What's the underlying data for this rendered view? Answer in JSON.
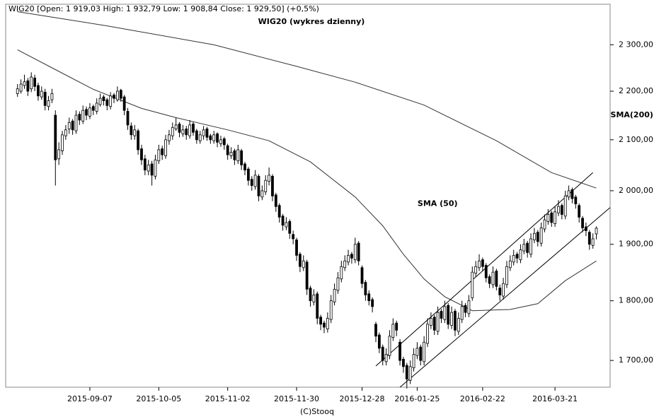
{
  "chart_data": {
    "type": "candlestick",
    "header": "WIG20 [Open: 1 919,03  High: 1 932,79  Low: 1 908,84  Close: 1 929,50] (+0,5%)",
    "title": "WIG20 (wykres dzienny)",
    "footer": "(C)Stooq",
    "log_scale": true,
    "grid": false,
    "color": "#000000",
    "up_color": "#ffffff",
    "down_color": "#000000",
    "xlim": [
      -2,
      172
    ],
    "xticks": [
      {
        "value": 21,
        "label": "2015-09-07"
      },
      {
        "value": 41,
        "label": "2015-10-05"
      },
      {
        "value": 61,
        "label": "2015-11-02"
      },
      {
        "value": 81,
        "label": "2015-11-30"
      },
      {
        "value": 100,
        "label": "2015-12-28"
      },
      {
        "value": 116,
        "label": "2016-01-25"
      },
      {
        "value": 135,
        "label": "2016-02-22"
      },
      {
        "value": 156,
        "label": "2016-03-21"
      }
    ],
    "ylim": [
      1657,
      2391
    ],
    "yticks": [
      {
        "value": 1700,
        "label": "1 700,00"
      },
      {
        "value": 1800,
        "label": "1 800,00"
      },
      {
        "value": 1900,
        "label": "1 900,00"
      },
      {
        "value": 2000,
        "label": "2 000,00"
      },
      {
        "value": 2100,
        "label": "2 100,00"
      },
      {
        "value": 2200,
        "label": "2 200,00"
      },
      {
        "value": 2300,
        "label": "2 300,00"
      }
    ],
    "candles": [
      [
        2195,
        2215,
        2188,
        2205
      ],
      [
        2200,
        2225,
        2195,
        2215
      ],
      [
        2212,
        2235,
        2205,
        2220
      ],
      [
        2222,
        2228,
        2190,
        2200
      ],
      [
        2205,
        2240,
        2198,
        2230
      ],
      [
        2228,
        2235,
        2200,
        2210
      ],
      [
        2212,
        2218,
        2180,
        2190
      ],
      [
        2188,
        2210,
        2182,
        2200
      ],
      [
        2198,
        2205,
        2160,
        2170
      ],
      [
        2168,
        2190,
        2160,
        2180
      ],
      [
        2182,
        2205,
        2175,
        2195
      ],
      [
        2150,
        2160,
        2010,
        2060
      ],
      [
        2062,
        2095,
        2050,
        2080
      ],
      [
        2078,
        2118,
        2070,
        2110
      ],
      [
        2108,
        2130,
        2100,
        2120
      ],
      [
        2122,
        2145,
        2112,
        2135
      ],
      [
        2138,
        2142,
        2110,
        2120
      ],
      [
        2118,
        2160,
        2112,
        2150
      ],
      [
        2152,
        2158,
        2130,
        2140
      ],
      [
        2138,
        2170,
        2132,
        2160
      ],
      [
        2162,
        2168,
        2140,
        2150
      ],
      [
        2148,
        2175,
        2142,
        2165
      ],
      [
        2168,
        2172,
        2150,
        2160
      ],
      [
        2158,
        2185,
        2152,
        2175
      ],
      [
        2172,
        2195,
        2168,
        2185
      ],
      [
        2188,
        2192,
        2170,
        2180
      ],
      [
        2182,
        2186,
        2160,
        2170
      ],
      [
        2168,
        2198,
        2162,
        2190
      ],
      [
        2192,
        2196,
        2175,
        2185
      ],
      [
        2182,
        2210,
        2178,
        2200
      ],
      [
        2202,
        2205,
        2178,
        2185
      ],
      [
        2188,
        2192,
        2150,
        2160
      ],
      [
        2158,
        2165,
        2120,
        2130
      ],
      [
        2128,
        2135,
        2100,
        2110
      ],
      [
        2108,
        2130,
        2100,
        2120
      ],
      [
        2118,
        2122,
        2070,
        2080
      ],
      [
        2082,
        2090,
        2050,
        2060
      ],
      [
        2062,
        2070,
        2030,
        2040
      ],
      [
        2038,
        2060,
        2030,
        2050
      ],
      [
        2052,
        2058,
        2010,
        2030
      ],
      [
        2028,
        2070,
        2022,
        2060
      ],
      [
        2058,
        2090,
        2052,
        2080
      ],
      [
        2082,
        2088,
        2060,
        2070
      ],
      [
        2068,
        2110,
        2062,
        2100
      ],
      [
        2098,
        2120,
        2090,
        2110
      ],
      [
        2108,
        2135,
        2100,
        2125
      ],
      [
        2122,
        2145,
        2118,
        2130
      ],
      [
        2132,
        2136,
        2105,
        2115
      ],
      [
        2112,
        2130,
        2106,
        2120
      ],
      [
        2122,
        2128,
        2100,
        2110
      ],
      [
        2108,
        2140,
        2102,
        2130
      ],
      [
        2132,
        2136,
        2108,
        2115
      ],
      [
        2118,
        2122,
        2092,
        2100
      ],
      [
        2098,
        2118,
        2092,
        2110
      ],
      [
        2108,
        2128,
        2100,
        2120
      ],
      [
        2122,
        2126,
        2098,
        2105
      ],
      [
        2108,
        2112,
        2092,
        2100
      ],
      [
        2098,
        2118,
        2092,
        2110
      ],
      [
        2112,
        2115,
        2085,
        2095
      ],
      [
        2092,
        2108,
        2086,
        2100
      ],
      [
        2102,
        2106,
        2080,
        2090
      ],
      [
        2088,
        2092,
        2060,
        2070
      ],
      [
        2068,
        2085,
        2062,
        2075
      ],
      [
        2078,
        2082,
        2050,
        2060
      ],
      [
        2058,
        2090,
        2052,
        2080
      ],
      [
        2078,
        2082,
        2040,
        2050
      ],
      [
        2052,
        2056,
        2030,
        2040
      ],
      [
        2042,
        2046,
        2010,
        2020
      ],
      [
        2022,
        2028,
        2000,
        2010
      ],
      [
        2008,
        2040,
        2002,
        2030
      ],
      [
        2028,
        2032,
        1980,
        1990
      ],
      [
        1988,
        2010,
        1982,
        2000
      ],
      [
        1998,
        2030,
        1992,
        2020
      ],
      [
        2018,
        2045,
        2010,
        2030
      ],
      [
        2028,
        2032,
        1980,
        1990
      ],
      [
        1992,
        1996,
        1960,
        1970
      ],
      [
        1972,
        1976,
        1940,
        1950
      ],
      [
        1952,
        1956,
        1925,
        1935
      ],
      [
        1932,
        1950,
        1926,
        1940
      ],
      [
        1942,
        1946,
        1910,
        1920
      ],
      [
        1918,
        1925,
        1900,
        1910
      ],
      [
        1908,
        1912,
        1870,
        1880
      ],
      [
        1882,
        1886,
        1850,
        1860
      ],
      [
        1858,
        1880,
        1852,
        1870
      ],
      [
        1868,
        1872,
        1810,
        1820
      ],
      [
        1822,
        1826,
        1790,
        1800
      ],
      [
        1798,
        1820,
        1792,
        1810
      ],
      [
        1812,
        1816,
        1760,
        1770
      ],
      [
        1772,
        1776,
        1750,
        1760
      ],
      [
        1762,
        1766,
        1745,
        1755
      ],
      [
        1752,
        1780,
        1746,
        1770
      ],
      [
        1768,
        1810,
        1762,
        1800
      ],
      [
        1798,
        1830,
        1792,
        1820
      ],
      [
        1818,
        1850,
        1812,
        1840
      ],
      [
        1838,
        1870,
        1832,
        1860
      ],
      [
        1858,
        1880,
        1852,
        1870
      ],
      [
        1868,
        1890,
        1862,
        1880
      ],
      [
        1882,
        1886,
        1865,
        1875
      ],
      [
        1872,
        1912,
        1866,
        1900
      ],
      [
        1902,
        1906,
        1862,
        1870
      ],
      [
        1858,
        1862,
        1822,
        1830
      ],
      [
        1832,
        1836,
        1800,
        1810
      ],
      [
        1812,
        1818,
        1792,
        1800
      ],
      [
        1802,
        1806,
        1780,
        1790
      ],
      [
        1760,
        1764,
        1730,
        1740
      ],
      [
        1742,
        1746,
        1712,
        1720
      ],
      [
        1722,
        1726,
        1692,
        1700
      ],
      [
        1698,
        1720,
        1692,
        1710
      ],
      [
        1708,
        1750,
        1702,
        1740
      ],
      [
        1738,
        1770,
        1732,
        1760
      ],
      [
        1762,
        1766,
        1740,
        1750
      ],
      [
        1730,
        1735,
        1692,
        1700
      ],
      [
        1702,
        1706,
        1680,
        1690
      ],
      [
        1692,
        1696,
        1655,
        1670
      ],
      [
        1668,
        1700,
        1662,
        1690
      ],
      [
        1688,
        1720,
        1682,
        1710
      ],
      [
        1708,
        1730,
        1702,
        1720
      ],
      [
        1722,
        1726,
        1692,
        1700
      ],
      [
        1698,
        1740,
        1692,
        1730
      ],
      [
        1728,
        1770,
        1722,
        1760
      ],
      [
        1758,
        1780,
        1752,
        1770
      ],
      [
        1772,
        1776,
        1742,
        1750
      ],
      [
        1748,
        1790,
        1742,
        1780
      ],
      [
        1782,
        1786,
        1762,
        1770
      ],
      [
        1768,
        1800,
        1762,
        1790
      ],
      [
        1792,
        1796,
        1752,
        1760
      ],
      [
        1758,
        1790,
        1752,
        1780
      ],
      [
        1782,
        1786,
        1740,
        1750
      ],
      [
        1748,
        1780,
        1742,
        1770
      ],
      [
        1768,
        1800,
        1762,
        1790
      ],
      [
        1792,
        1796,
        1772,
        1780
      ],
      [
        1778,
        1810,
        1772,
        1800
      ],
      [
        1805,
        1860,
        1800,
        1850
      ],
      [
        1848,
        1870,
        1842,
        1860
      ],
      [
        1858,
        1882,
        1852,
        1870
      ],
      [
        1872,
        1876,
        1852,
        1860
      ],
      [
        1862,
        1866,
        1832,
        1840
      ],
      [
        1842,
        1846,
        1822,
        1830
      ],
      [
        1828,
        1860,
        1822,
        1850
      ],
      [
        1852,
        1856,
        1818,
        1825
      ],
      [
        1822,
        1828,
        1800,
        1810
      ],
      [
        1808,
        1840,
        1802,
        1830
      ],
      [
        1828,
        1870,
        1822,
        1860
      ],
      [
        1858,
        1880,
        1852,
        1870
      ],
      [
        1868,
        1890,
        1862,
        1880
      ],
      [
        1882,
        1886,
        1866,
        1875
      ],
      [
        1872,
        1900,
        1866,
        1890
      ],
      [
        1888,
        1910,
        1882,
        1900
      ],
      [
        1902,
        1906,
        1876,
        1885
      ],
      [
        1882,
        1920,
        1876,
        1910
      ],
      [
        1908,
        1930,
        1902,
        1920
      ],
      [
        1922,
        1926,
        1896,
        1905
      ],
      [
        1902,
        1940,
        1896,
        1930
      ],
      [
        1928,
        1955,
        1922,
        1945
      ],
      [
        1942,
        1965,
        1936,
        1955
      ],
      [
        1958,
        1962,
        1932,
        1940
      ],
      [
        1938,
        1970,
        1932,
        1960
      ],
      [
        1958,
        1982,
        1952,
        1970
      ],
      [
        1972,
        1976,
        1946,
        1955
      ],
      [
        1952,
        2000,
        1946,
        1990
      ],
      [
        1988,
        2010,
        1982,
        2000
      ],
      [
        2002,
        2006,
        1976,
        1985
      ],
      [
        1988,
        1992,
        1966,
        1975
      ],
      [
        1972,
        1976,
        1940,
        1950
      ],
      [
        1948,
        1952,
        1922,
        1930
      ],
      [
        1932,
        1940,
        1915,
        1925
      ],
      [
        1922,
        1926,
        1890,
        1900
      ],
      [
        1898,
        1920,
        1892,
        1910
      ],
      [
        1919.03,
        1932.79,
        1908.84,
        1929.5
      ]
    ],
    "series": [
      {
        "name": "SMA(200)",
        "color": "#333333",
        "x": [
          0,
          26,
          57,
          81,
          98,
          118,
          139,
          155,
          168
        ],
        "values": [
          2374,
          2342,
          2300,
          2253,
          2219,
          2171,
          2098,
          2035,
          2005
        ]
      },
      {
        "name": "SMA (50)",
        "color": "#333333",
        "x": [
          0,
          11,
          22,
          36,
          46,
          61,
          73,
          85,
          98,
          106,
          112,
          118,
          124,
          132,
          143,
          151,
          159,
          168
        ],
        "values": [
          2289,
          2246,
          2204,
          2164,
          2145,
          2120,
          2098,
          2056,
          1988,
          1934,
          1882,
          1838,
          1807,
          1783,
          1785,
          1795,
          1835,
          1870
        ]
      }
    ],
    "channel": [
      {
        "x": [
          104,
          167
        ],
        "values": [
          1691,
          2035
        ]
      },
      {
        "x": [
          111,
          172
        ],
        "values": [
          1657,
          1968
        ]
      }
    ]
  }
}
